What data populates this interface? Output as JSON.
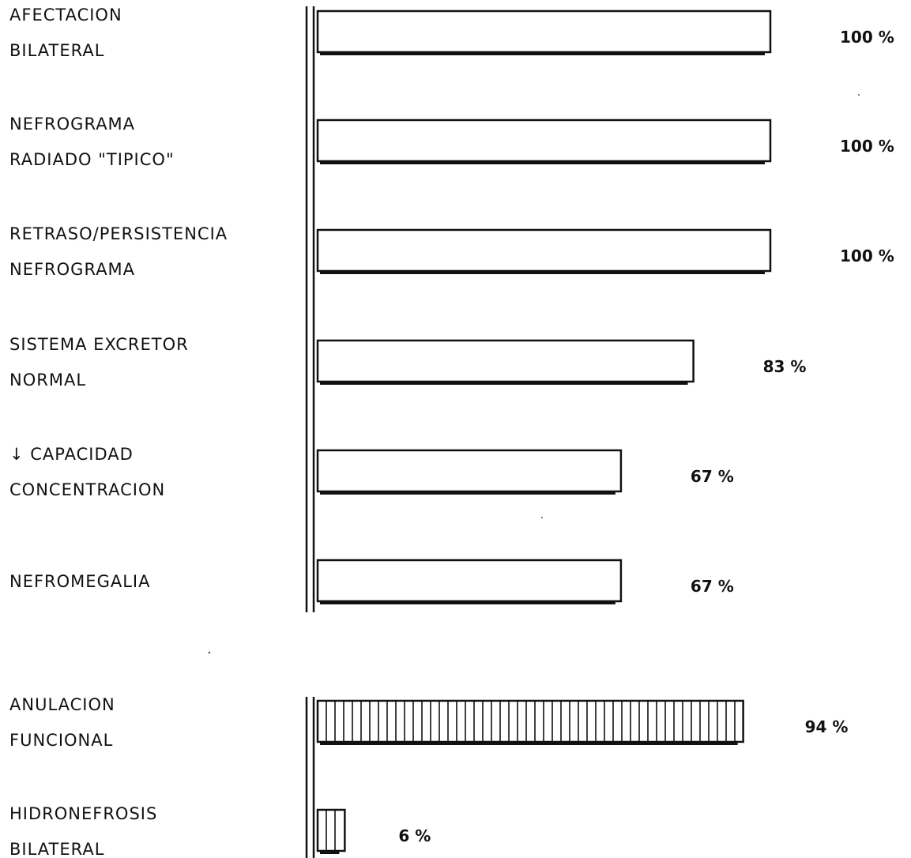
{
  "chart_data": [
    {
      "type": "bar",
      "orientation": "horizontal",
      "bar_style": "outline",
      "categories": [
        [
          "AFECTACION",
          "BILATERAL"
        ],
        [
          "NEFROGRAMA",
          "RADIADO \"TIPICO\""
        ],
        [
          "RETRASO/PERSISTENCIA",
          "NEFROGRAMA"
        ],
        [
          "SISTEMA  EXCRETOR",
          "NORMAL"
        ],
        [
          "↓  CAPACIDAD",
          "CONCENTRACION"
        ],
        [
          "NEFROMEGALIA"
        ]
      ],
      "values": [
        100,
        100,
        100,
        83,
        67,
        67
      ],
      "value_labels": [
        "100 %",
        "100 %",
        "100 %",
        "83 %",
        "67 %",
        "67 %"
      ],
      "xlim": [
        0,
        100
      ],
      "title": "",
      "xlabel": "",
      "ylabel": "",
      "grid": false,
      "legend": "none"
    },
    {
      "type": "bar",
      "orientation": "horizontal",
      "bar_style": "vertical-hatch",
      "categories": [
        [
          "ANULACION",
          "FUNCIONAL"
        ],
        [
          "HIDRONEFROSIS",
          "BILATERAL"
        ]
      ],
      "values": [
        94,
        6
      ],
      "value_labels": [
        "94 %",
        "6 %"
      ],
      "xlim": [
        0,
        100
      ],
      "title": "",
      "xlabel": "",
      "ylabel": "",
      "grid": false,
      "legend": "none"
    }
  ]
}
